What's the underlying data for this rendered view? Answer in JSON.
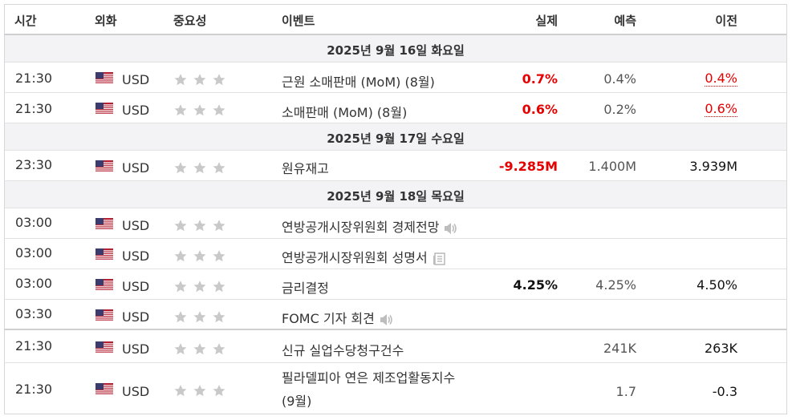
{
  "header": {
    "time": "시간",
    "currency": "외화",
    "importance": "중요성",
    "event": "이벤트",
    "actual": "실제",
    "forecast": "예측",
    "previous": "이전"
  },
  "days": [
    {
      "label": "2025년 9월 16일 화요일"
    },
    {
      "label": "2025년 9월 17일 수요일"
    },
    {
      "label": "2025년 9월 18일 목요일"
    }
  ],
  "events": [
    {
      "time": "21:30",
      "currency": "USD",
      "event": "근원 소매판매 (MoM) (8월)",
      "actual": "0.7%",
      "forecast": "0.4%",
      "previous": "0.4%"
    },
    {
      "time": "21:30",
      "currency": "USD",
      "event": "소매판매 (MoM) (8월)",
      "actual": "0.6%",
      "forecast": "0.2%",
      "previous": "0.6%"
    },
    {
      "time": "23:30",
      "currency": "USD",
      "event": "원유재고",
      "actual": "-9.285M",
      "forecast": "1.400M",
      "previous": "3.939M"
    },
    {
      "time": "03:00",
      "currency": "USD",
      "event": "연방공개시장위원회 경제전망",
      "icon": "speaker-icon"
    },
    {
      "time": "03:00",
      "currency": "USD",
      "event": "연방공개시장위원회 성명서",
      "icon": "document-icon"
    },
    {
      "time": "03:00",
      "currency": "USD",
      "event": "금리결정",
      "actual": "4.25%",
      "forecast": "4.25%",
      "previous": "4.50%"
    },
    {
      "time": "03:30",
      "currency": "USD",
      "event": "FOMC 기자 회견",
      "icon": "speaker-icon"
    },
    {
      "time": "21:30",
      "currency": "USD",
      "event": "신규 실업수당청구건수",
      "forecast": "241K",
      "previous": "263K"
    },
    {
      "time": "21:30",
      "currency": "USD",
      "event_line1": "필라델피아 연은 제조업활동지수",
      "event_line2": "(9월)",
      "forecast": "1.7",
      "previous": "-0.3"
    }
  ],
  "importance_stars": 3,
  "colors": {
    "positive": "#e60000",
    "star": "#c9c9c9",
    "day_bg": "#f3f3f5"
  }
}
